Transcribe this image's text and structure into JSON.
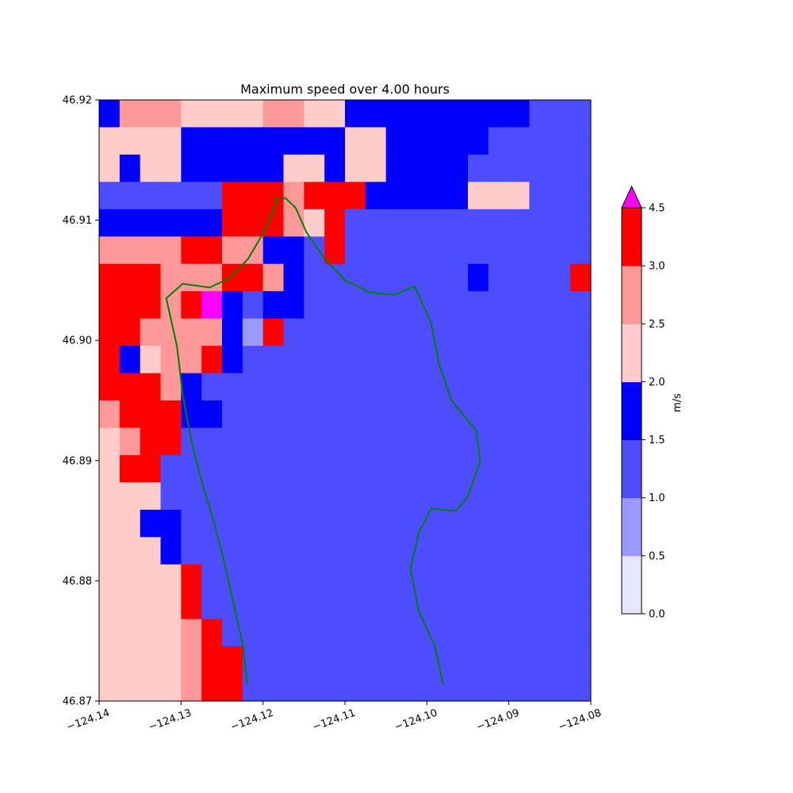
{
  "chart_data": {
    "type": "heatmap",
    "title": "Maximum speed over 4.00 hours",
    "xlabel": "",
    "ylabel": "",
    "xlim": [
      -124.14,
      -124.08
    ],
    "ylim": [
      46.87,
      46.92
    ],
    "x_ticks": [
      -124.14,
      -124.13,
      -124.12,
      -124.11,
      -124.1,
      -124.09,
      -124.08
    ],
    "x_tick_labels": [
      "−124.14",
      "−124.13",
      "−124.12",
      "−124.11",
      "−124.10",
      "−124.09",
      "−124.08"
    ],
    "y_ticks": [
      46.87,
      46.88,
      46.89,
      46.9,
      46.91,
      46.92
    ],
    "y_tick_labels": [
      "46.87",
      "46.88",
      "46.89",
      "46.90",
      "46.91",
      "46.92"
    ],
    "grid": false,
    "colorbar": {
      "label": "m/s",
      "levels": [
        0.0,
        0.5,
        1.0,
        1.5,
        2.0,
        2.5,
        3.0,
        4.5
      ],
      "tick_labels": [
        "0.0",
        "0.5",
        "1.0",
        "1.5",
        "2.0",
        "2.5",
        "3.0",
        "4.5"
      ],
      "colors": [
        "#e6e6ff",
        "#9999ff",
        "#4d4dff",
        "#0000ff",
        "#ffcccc",
        "#ff9999",
        "#ff0000"
      ],
      "extend_max_color": "#ff00ff",
      "placement": "right"
    },
    "grid_rows_note_top_first": true,
    "value_code_legend": "0=0-0.5, 1=0.5-1.0, 2=1.0-1.5, 3=1.5-2.0, 4=2.0-2.5, 5=2.5-3.0, 6=3.0-4.5, 7=>4.5, L=land",
    "cells": [
      "355544445544333333333222",
      "444433333333443333322222",
      "434433333443443333222222",
      "222222666566633333444222",
      "333333666546222222222222",
      "555566553326222222222222",
      "666555665322222222322226",
      "666567323322222222222222",
      "665555316222222222222222",
      "634556322222222222222222",
      "666532222222222222222222",
      "566633222222222222222222",
      "456622222222222222222222",
      "466222222222222222222222",
      "444222222222222222222222",
      "443322222222222222222222",
      "444322222222222222222222",
      "444462222222222222222222",
      "444462222222222222222222",
      "444456222222222222222222",
      "444456622222222222222222",
      "444456622222222222222222"
    ],
    "coastlines": [
      {
        "name": "",
        "points": [
          [
            -124.1219,
            46.8714
          ],
          [
            -124.1225,
            46.8748
          ],
          [
            -124.1236,
            46.8781
          ],
          [
            -124.1247,
            46.8815
          ],
          [
            -124.126,
            46.8849
          ],
          [
            -124.1275,
            46.8883
          ],
          [
            -124.1287,
            46.8915
          ],
          [
            -124.1298,
            46.8955
          ],
          [
            -124.1305,
            46.8995
          ],
          [
            -124.1318,
            46.9035
          ],
          [
            -124.1298,
            46.9047
          ],
          [
            -124.1265,
            46.9044
          ],
          [
            -124.124,
            46.9052
          ],
          [
            -124.1218,
            46.9068
          ],
          [
            -124.1195,
            46.9095
          ],
          [
            -124.1182,
            46.9118
          ],
          [
            -124.1172,
            46.9118
          ],
          [
            -124.116,
            46.911
          ],
          [
            -124.1147,
            46.909
          ],
          [
            -124.1125,
            46.9068
          ],
          [
            -124.11,
            46.905
          ],
          [
            -124.107,
            46.904
          ],
          [
            -124.104,
            46.9038
          ],
          [
            -124.1015,
            46.9045
          ],
          [
            -124.0995,
            46.9015
          ],
          [
            -124.0985,
            46.898
          ],
          [
            -124.097,
            46.895
          ],
          [
            -124.094,
            46.8925
          ],
          [
            -124.0935,
            46.89
          ],
          [
            -124.095,
            46.887
          ],
          [
            -124.0965,
            46.8858
          ],
          [
            -124.0995,
            46.886
          ],
          [
            -124.101,
            46.884
          ],
          [
            -124.102,
            46.881
          ],
          [
            -124.101,
            46.8775
          ],
          [
            -124.099,
            46.8745
          ],
          [
            -124.098,
            46.8713
          ]
        ]
      }
    ]
  }
}
